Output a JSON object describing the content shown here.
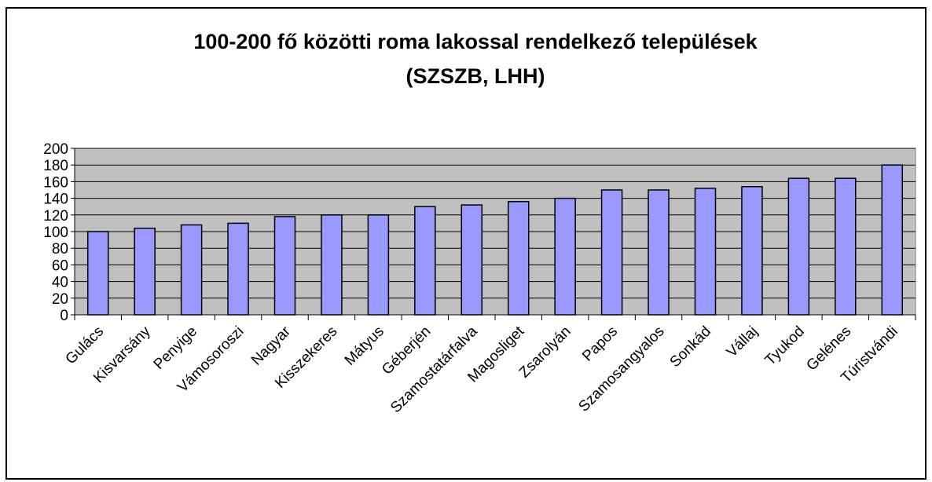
{
  "chart_data": {
    "type": "bar",
    "title": [
      "100-200 fő közötti roma lakossal rendelkező települések",
      "(SZSZB, LHH)"
    ],
    "categories": [
      "Gulács",
      "Kisvarsány",
      "Penyige",
      "Vámosoroszi",
      "Nagyar",
      "Kisszekeres",
      "Mátyus",
      "Géberjén",
      "Szamostatárfalva",
      "Magosliget",
      "Zsarolyán",
      "Papos",
      "Szamosangyalos",
      "Sonkád",
      "Vállaj",
      "Tyukod",
      "Gelénes",
      "Túristvándi"
    ],
    "values": [
      100,
      104,
      108,
      110,
      118,
      120,
      120,
      130,
      132,
      136,
      140,
      150,
      150,
      152,
      154,
      164,
      164,
      180
    ],
    "color": "#9999ff",
    "ylim": [
      0,
      200
    ],
    "yticks": [
      0,
      20,
      40,
      60,
      80,
      100,
      120,
      140,
      160,
      180,
      200
    ],
    "grid": true
  }
}
